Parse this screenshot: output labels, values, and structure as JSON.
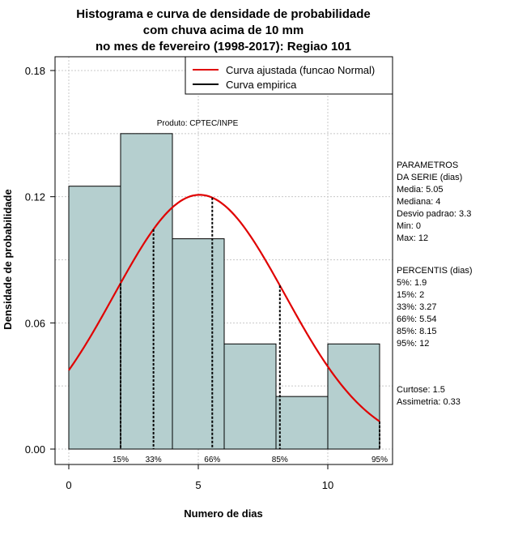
{
  "chart_data": {
    "type": "bar",
    "title_lines": [
      "Histograma e curva de densidade de probabilidade",
      "com chuva acima de 10 mm",
      "no mes de fevereiro (1998-2017): Regiao 101"
    ],
    "xlabel": "Numero de dias",
    "ylabel": "Densidade de probabilidade",
    "xlim": [
      -1,
      12.5
    ],
    "ylim": [
      0,
      0.18
    ],
    "x_ticks": [
      0,
      5,
      10
    ],
    "y_ticks": [
      0.0,
      0.06,
      0.12,
      0.18
    ],
    "y_tick_labels": [
      "0.00",
      "0.06",
      "0.12",
      "0.18"
    ],
    "grid": true,
    "bins": [
      {
        "from": 0,
        "to": 2,
        "density": 0.125
      },
      {
        "from": 2,
        "to": 4,
        "density": 0.15
      },
      {
        "from": 4,
        "to": 6,
        "density": 0.1
      },
      {
        "from": 6,
        "to": 8,
        "density": 0.05
      },
      {
        "from": 8,
        "to": 10,
        "density": 0.025
      },
      {
        "from": 10,
        "to": 12,
        "density": 0.05
      }
    ],
    "bar_color": "#b5cfcf",
    "normal_curve": {
      "mean": 5.05,
      "sd": 3.3,
      "x_range": [
        0,
        12
      ],
      "color": "#e00000"
    },
    "percentile_lines": [
      {
        "label": "15%",
        "x": 2
      },
      {
        "label": "33%",
        "x": 3.27
      },
      {
        "label": "66%",
        "x": 5.54
      },
      {
        "label": "85%",
        "x": 8.15
      },
      {
        "label": "95%",
        "x": 12
      }
    ],
    "legend": {
      "position": "top-right",
      "entries": [
        {
          "label": "Curva ajustada (funcao Normal)",
          "color": "#e00000"
        },
        {
          "label": "Curva empirica",
          "color": "#000000"
        }
      ]
    },
    "annotation": "Produto: CPTEC/INPE",
    "side_panel": {
      "params_lines": [
        "PARAMETROS",
        "DA SERIE (dias)",
        "  Media: 5.05",
        "  Mediana: 4",
        "  Desvio padrao: 3.3",
        "  Min: 0",
        "  Max: 12"
      ],
      "percentis_lines": [
        "PERCENTIS (dias)",
        "   5%: 1.9",
        "   15%: 2",
        "   33%: 3.27",
        "   66%: 5.54",
        "   85%: 8.15",
        "   95%: 12"
      ],
      "shape_lines": [
        "     Curtose: 1.5",
        "Assimetria: 0.33"
      ]
    }
  }
}
